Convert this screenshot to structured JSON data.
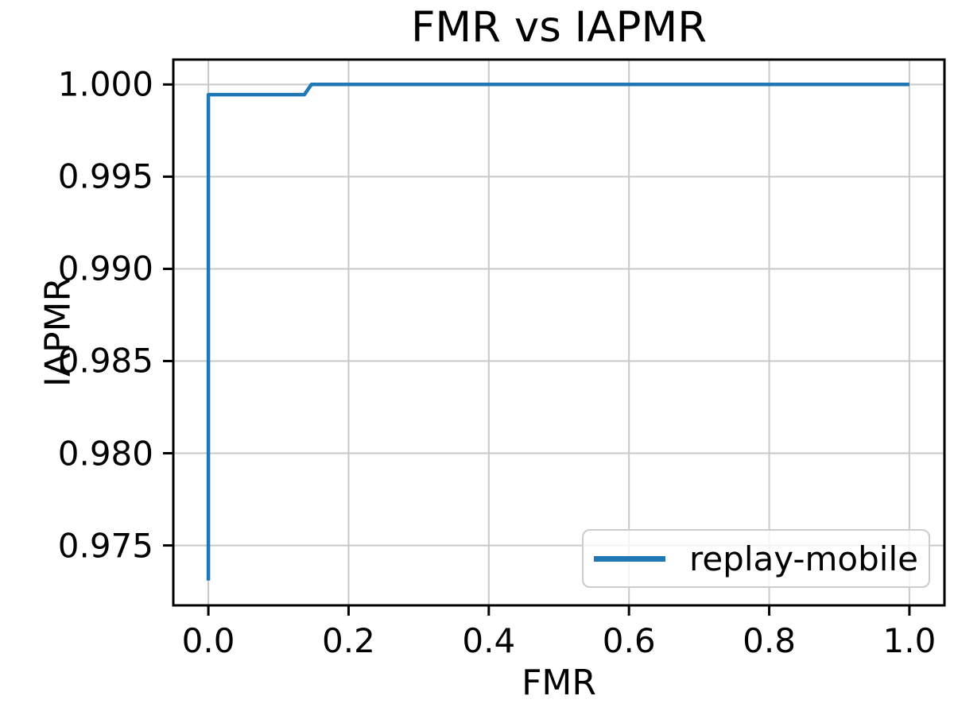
{
  "chart_data": {
    "type": "line",
    "title": "FMR vs IAPMR",
    "xlabel": "FMR",
    "ylabel": "IAPMR",
    "xlim": [
      -0.05,
      1.05
    ],
    "ylim": [
      0.97175,
      1.00135
    ],
    "x_ticks": [
      0.0,
      0.2,
      0.4,
      0.6,
      0.8,
      1.0
    ],
    "x_tick_labels": [
      "0.0",
      "0.2",
      "0.4",
      "0.6",
      "0.8",
      "1.0"
    ],
    "y_ticks": [
      0.975,
      0.98,
      0.985,
      0.99,
      0.995,
      1.0
    ],
    "y_tick_labels": [
      "0.975",
      "0.980",
      "0.985",
      "0.990",
      "0.995",
      "1.000"
    ],
    "grid": true,
    "legend": {
      "position": "lower-right",
      "entries": [
        {
          "label": "replay-mobile",
          "color": "#1f77b4"
        }
      ]
    },
    "series": [
      {
        "name": "replay-mobile",
        "color": "#1f77b4",
        "x": [
          0.0,
          0.0,
          0.137,
          0.147,
          1.0
        ],
        "y": [
          0.9731,
          0.99945,
          0.99945,
          1.0,
          1.0
        ]
      }
    ],
    "colors": {
      "grid": "#c9c9c9",
      "spine": "#000000",
      "background": "#ffffff",
      "legend_border": "#cccccc"
    }
  }
}
